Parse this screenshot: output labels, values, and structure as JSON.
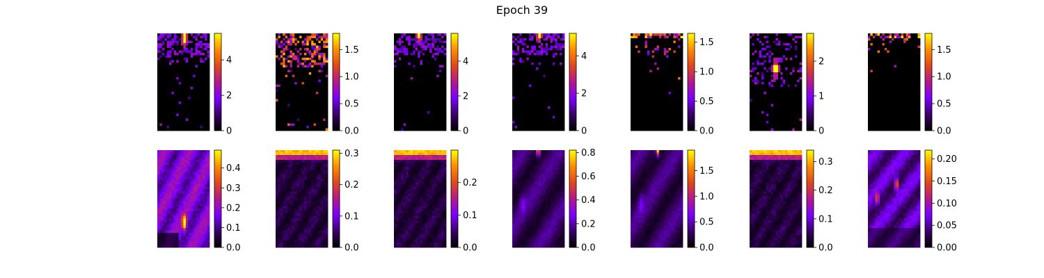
{
  "figure": {
    "title": "Epoch 39"
  },
  "colormap": {
    "name": "gnuplot",
    "stops": [
      "#000000",
      "#3a0066",
      "#7a00ff",
      "#b3198c",
      "#e0481c",
      "#ff8c00",
      "#ffff00"
    ]
  },
  "chart_data": [
    {
      "type": "heatmap",
      "row": 1,
      "col": 1,
      "vmin": 0,
      "vmax": 5.5,
      "ticks": [
        "0",
        "2",
        "4"
      ],
      "tick_values": [
        0,
        2,
        4
      ],
      "pattern": "sparse-top",
      "peak": [
        0.52,
        0.05
      ],
      "peak_value": 5.5
    },
    {
      "type": "heatmap",
      "row": 1,
      "col": 2,
      "vmin": 0,
      "vmax": 1.8,
      "ticks": [
        "0.0",
        "0.5",
        "1.0",
        "1.5"
      ],
      "tick_values": [
        0,
        0.5,
        1.0,
        1.5
      ],
      "pattern": "sparse-top-wide",
      "peak": [
        0.15,
        0.2
      ],
      "peak_value": 1.8
    },
    {
      "type": "heatmap",
      "row": 1,
      "col": 3,
      "vmin": 0,
      "vmax": 5.6,
      "ticks": [
        "0",
        "2",
        "4"
      ],
      "tick_values": [
        0,
        2,
        4
      ],
      "pattern": "sparse-top",
      "peak": [
        0.48,
        0.0
      ],
      "peak_value": 5.6
    },
    {
      "type": "heatmap",
      "row": 1,
      "col": 4,
      "vmin": 0,
      "vmax": 5.2,
      "ticks": [
        "0",
        "2",
        "4"
      ],
      "tick_values": [
        0,
        2,
        4
      ],
      "pattern": "sparse-top",
      "peak": [
        0.52,
        0.0
      ],
      "peak_value": 5.2
    },
    {
      "type": "heatmap",
      "row": 1,
      "col": 5,
      "vmin": 0,
      "vmax": 1.65,
      "ticks": [
        "0.0",
        "0.5",
        "1.0",
        "1.5"
      ],
      "tick_values": [
        0,
        0.5,
        1.0,
        1.5
      ],
      "pattern": "very-sparse-top",
      "peak": [
        0.3,
        0.0
      ],
      "peak_value": 1.65
    },
    {
      "type": "heatmap",
      "row": 1,
      "col": 6,
      "vmin": 0,
      "vmax": 2.8,
      "ticks": [
        "0",
        "1",
        "2"
      ],
      "tick_values": [
        0,
        1,
        2
      ],
      "pattern": "sparse-mid",
      "peak": [
        0.5,
        0.36
      ],
      "peak_value": 2.8
    },
    {
      "type": "heatmap",
      "row": 1,
      "col": 7,
      "vmin": 0,
      "vmax": 1.8,
      "ticks": [
        "0.0",
        "0.5",
        "1.0",
        "1.5"
      ],
      "tick_values": [
        0,
        0.5,
        1.0,
        1.5
      ],
      "pattern": "very-sparse-top",
      "peak": [
        0.45,
        0.02
      ],
      "peak_value": 1.8
    },
    {
      "type": "heatmap",
      "row": 2,
      "col": 1,
      "vmin": 0,
      "vmax": 0.49,
      "ticks": [
        "0.0",
        "0.1",
        "0.2",
        "0.3",
        "0.4"
      ],
      "tick_values": [
        0,
        0.1,
        0.2,
        0.3,
        0.4
      ],
      "pattern": "smooth-spot",
      "peak": [
        0.52,
        0.75
      ],
      "peak_value": 0.49
    },
    {
      "type": "heatmap",
      "row": 2,
      "col": 2,
      "vmin": 0,
      "vmax": 0.31,
      "ticks": [
        "0.0",
        "0.1",
        "0.2",
        "0.3"
      ],
      "tick_values": [
        0,
        0.1,
        0.2,
        0.3
      ],
      "pattern": "smooth-top-band",
      "peak": [
        0.5,
        0.0
      ],
      "peak_value": 0.31
    },
    {
      "type": "heatmap",
      "row": 2,
      "col": 3,
      "vmin": 0,
      "vmax": 0.3,
      "ticks": [
        "0.0",
        "0.1",
        "0.2"
      ],
      "tick_values": [
        0,
        0.1,
        0.2
      ],
      "pattern": "smooth-top-band",
      "peak": [
        0.5,
        0.0
      ],
      "peak_value": 0.3
    },
    {
      "type": "heatmap",
      "row": 2,
      "col": 4,
      "vmin": 0,
      "vmax": 0.82,
      "ticks": [
        "0.0",
        "0.2",
        "0.4",
        "0.6",
        "0.8"
      ],
      "tick_values": [
        0,
        0.2,
        0.4,
        0.6,
        0.8
      ],
      "pattern": "smooth-top-spot",
      "peak": [
        0.5,
        0.0
      ],
      "peak_value": 0.82
    },
    {
      "type": "heatmap",
      "row": 2,
      "col": 5,
      "vmin": 0,
      "vmax": 1.9,
      "ticks": [
        "0.0",
        "0.5",
        "1.0",
        "1.5"
      ],
      "tick_values": [
        0,
        0.5,
        1.0,
        1.5
      ],
      "pattern": "smooth-top-spot",
      "peak": [
        0.52,
        0.0
      ],
      "peak_value": 1.9
    },
    {
      "type": "heatmap",
      "row": 2,
      "col": 6,
      "vmin": 0,
      "vmax": 0.34,
      "ticks": [
        "0.0",
        "0.1",
        "0.2",
        "0.3"
      ],
      "tick_values": [
        0,
        0.1,
        0.2,
        0.3
      ],
      "pattern": "smooth-top-band",
      "peak": [
        0.5,
        0.0
      ],
      "peak_value": 0.34
    },
    {
      "type": "heatmap",
      "row": 2,
      "col": 7,
      "vmin": 0,
      "vmax": 0.22,
      "ticks": [
        "0.00",
        "0.05",
        "0.10",
        "0.15",
        "0.20"
      ],
      "tick_values": [
        0,
        0.05,
        0.1,
        0.15,
        0.2
      ],
      "pattern": "smooth-multi",
      "peak": [
        0.55,
        0.35
      ],
      "peak_value": 0.22
    }
  ]
}
